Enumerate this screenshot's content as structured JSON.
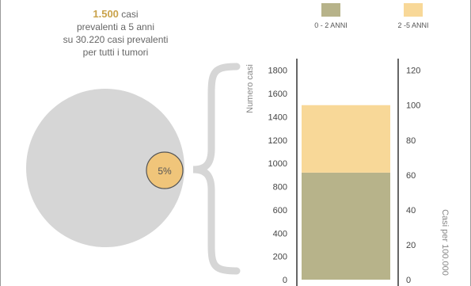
{
  "caption": {
    "highlight": "1.500",
    "line1_rest": " casi",
    "line2": "prevalenti a 5 anni",
    "line3": "su 30.220 casi prevalenti",
    "line4": "per tutti i tumori"
  },
  "pie": {
    "label": "5%",
    "fraction": 0.05
  },
  "colors": {
    "series_0_2": "#b7b38a",
    "series_2_5": "#f8d898",
    "bubble": "#f0c57a",
    "circle": "#d6d6d6",
    "brace": "#d6d6d6",
    "highlight": "#c9a24a"
  },
  "chart_data": {
    "type": "bar",
    "stacked": true,
    "categories": [
      ""
    ],
    "series": [
      {
        "name": "0 - 2 ANNI",
        "values": [
          920
        ]
      },
      {
        "name": "2 -5 ANNI",
        "values": [
          580
        ]
      }
    ],
    "ylabel": "Numero casi",
    "ylim": [
      0,
      1900
    ],
    "yticks": [
      "0",
      "200",
      "400",
      "600",
      "800",
      "1000",
      "1200",
      "1400",
      "1600",
      "1800"
    ],
    "y2label": "Casi per 100.000",
    "y2lim": [
      0,
      126.67
    ],
    "y2ticks": [
      "0",
      "20",
      "40",
      "60",
      "80",
      "100",
      "120"
    ],
    "legend_position": "top-right",
    "grid": false
  }
}
